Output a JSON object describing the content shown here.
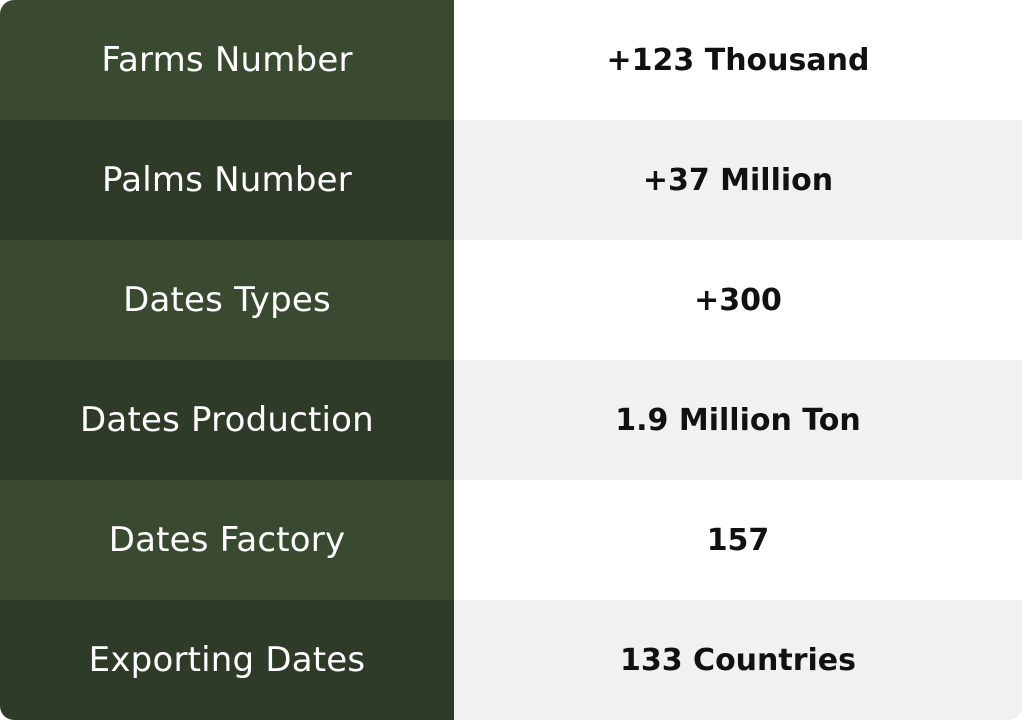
{
  "colors": {
    "label_bg_odd": "#3a4a30",
    "label_bg_even": "#2f3b29",
    "value_bg_odd": "#ffffff",
    "value_bg_even": "#f1f1f1",
    "label_text": "#ffffff",
    "value_text": "#111111"
  },
  "rows": [
    {
      "label": "Farms Number",
      "value": "+123 Thousand"
    },
    {
      "label": "Palms Number",
      "value": "+37 Million"
    },
    {
      "label": "Dates Types",
      "value": "+300"
    },
    {
      "label": "Dates Production",
      "value": "1.9 Million Ton"
    },
    {
      "label": "Dates Factory",
      "value": "157"
    },
    {
      "label": "Exporting Dates",
      "value": "133 Countries"
    }
  ]
}
